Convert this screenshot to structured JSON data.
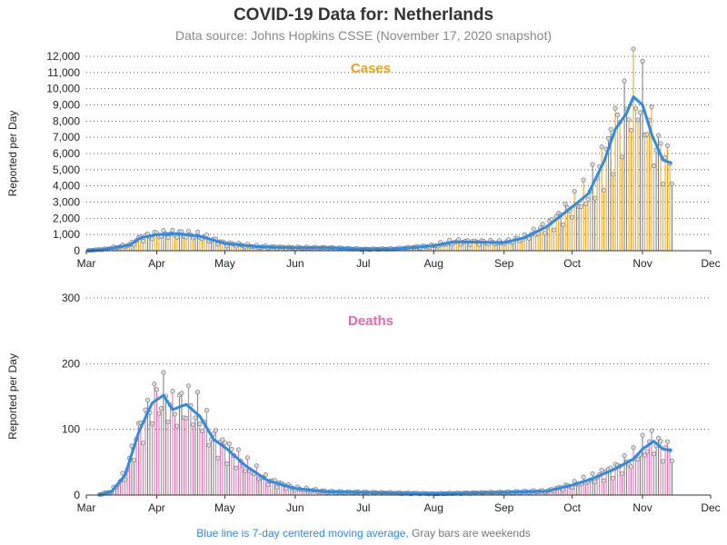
{
  "page": {
    "title": "COVID-19 Data for: Netherlands",
    "subtitle": "Data source: Johns Hopkins CSSE (November 17, 2020 snapshot)",
    "footnote_blue": "Blue line is 7-day centered moving average,",
    "footnote_gray": " Gray bars are weekends"
  },
  "colors": {
    "cases": "#f0a20c",
    "deaths": "#e06ab0",
    "average": "#2b8be8",
    "weekend": "#777777",
    "grid": "#555555"
  },
  "chart_data": [
    {
      "type": "bar",
      "title": "Cases",
      "ylabel": "Reported per Day",
      "ylim": [
        0,
        12000
      ],
      "yticks": [
        0,
        1000,
        2000,
        3000,
        4000,
        5000,
        6000,
        7000,
        8000,
        9000,
        10000,
        11000,
        12000
      ],
      "ytick_labels": [
        "0",
        "1,000",
        "2,000",
        "3,000",
        "4,000",
        "5,000",
        "6,000",
        "7,000",
        "8,000",
        "9,000",
        "10,000",
        "11,000",
        "12,000"
      ],
      "x_month_labels": [
        "Mar",
        "Apr",
        "May",
        "Jun",
        "Jul",
        "Aug",
        "Sep",
        "Oct",
        "Nov",
        "Dec"
      ],
      "x_start": "2020-03-01",
      "x_end": "2020-12-01",
      "grid": "horizontal dotted",
      "bars": "daily reported values",
      "moving_average_series": {
        "name": "7-day centered moving average",
        "x": [
          "2020-03-01",
          "2020-03-10",
          "2020-03-20",
          "2020-03-25",
          "2020-04-01",
          "2020-04-10",
          "2020-04-20",
          "2020-05-01",
          "2020-05-15",
          "2020-06-01",
          "2020-06-15",
          "2020-07-01",
          "2020-07-15",
          "2020-08-01",
          "2020-08-10",
          "2020-08-20",
          "2020-09-01",
          "2020-09-10",
          "2020-09-20",
          "2020-10-01",
          "2020-10-08",
          "2020-10-15",
          "2020-10-20",
          "2020-10-25",
          "2020-10-28",
          "2020-11-01",
          "2020-11-05",
          "2020-11-10",
          "2020-11-14"
        ],
        "y": [
          0,
          100,
          350,
          800,
          1000,
          1050,
          900,
          450,
          250,
          180,
          180,
          90,
          110,
          300,
          550,
          530,
          500,
          800,
          1500,
          2700,
          3500,
          5500,
          7500,
          8500,
          9500,
          9000,
          7200,
          5600,
          5400
        ]
      }
    },
    {
      "type": "bar",
      "title": "Deaths",
      "ylabel": "Reported per Day",
      "ylim": [
        0,
        300
      ],
      "yticks": [
        0,
        100,
        200,
        300
      ],
      "ytick_labels": [
        "0",
        "100",
        "200",
        "300"
      ],
      "x_month_labels": [
        "Mar",
        "Apr",
        "May",
        "Jun",
        "Jul",
        "Aug",
        "Sep",
        "Oct",
        "Nov",
        "Dec"
      ],
      "x_start": "2020-03-01",
      "x_end": "2020-12-01",
      "grid": "horizontal dotted",
      "bars": "daily reported values",
      "moving_average_series": {
        "name": "7-day centered moving average",
        "x": [
          "2020-03-06",
          "2020-03-12",
          "2020-03-18",
          "2020-03-24",
          "2020-03-30",
          "2020-04-04",
          "2020-04-08",
          "2020-04-14",
          "2020-04-20",
          "2020-04-26",
          "2020-05-02",
          "2020-05-10",
          "2020-05-20",
          "2020-06-01",
          "2020-06-15",
          "2020-07-01",
          "2020-07-15",
          "2020-08-01",
          "2020-08-15",
          "2020-09-01",
          "2020-09-20",
          "2020-10-01",
          "2020-10-10",
          "2020-10-20",
          "2020-10-28",
          "2020-11-01",
          "2020-11-06",
          "2020-11-10",
          "2020-11-14"
        ],
        "y": [
          0,
          5,
          30,
          95,
          140,
          152,
          130,
          138,
          120,
          85,
          70,
          45,
          22,
          10,
          5,
          4,
          3,
          2,
          3,
          4,
          6,
          15,
          25,
          40,
          55,
          70,
          82,
          70,
          68
        ]
      }
    }
  ]
}
